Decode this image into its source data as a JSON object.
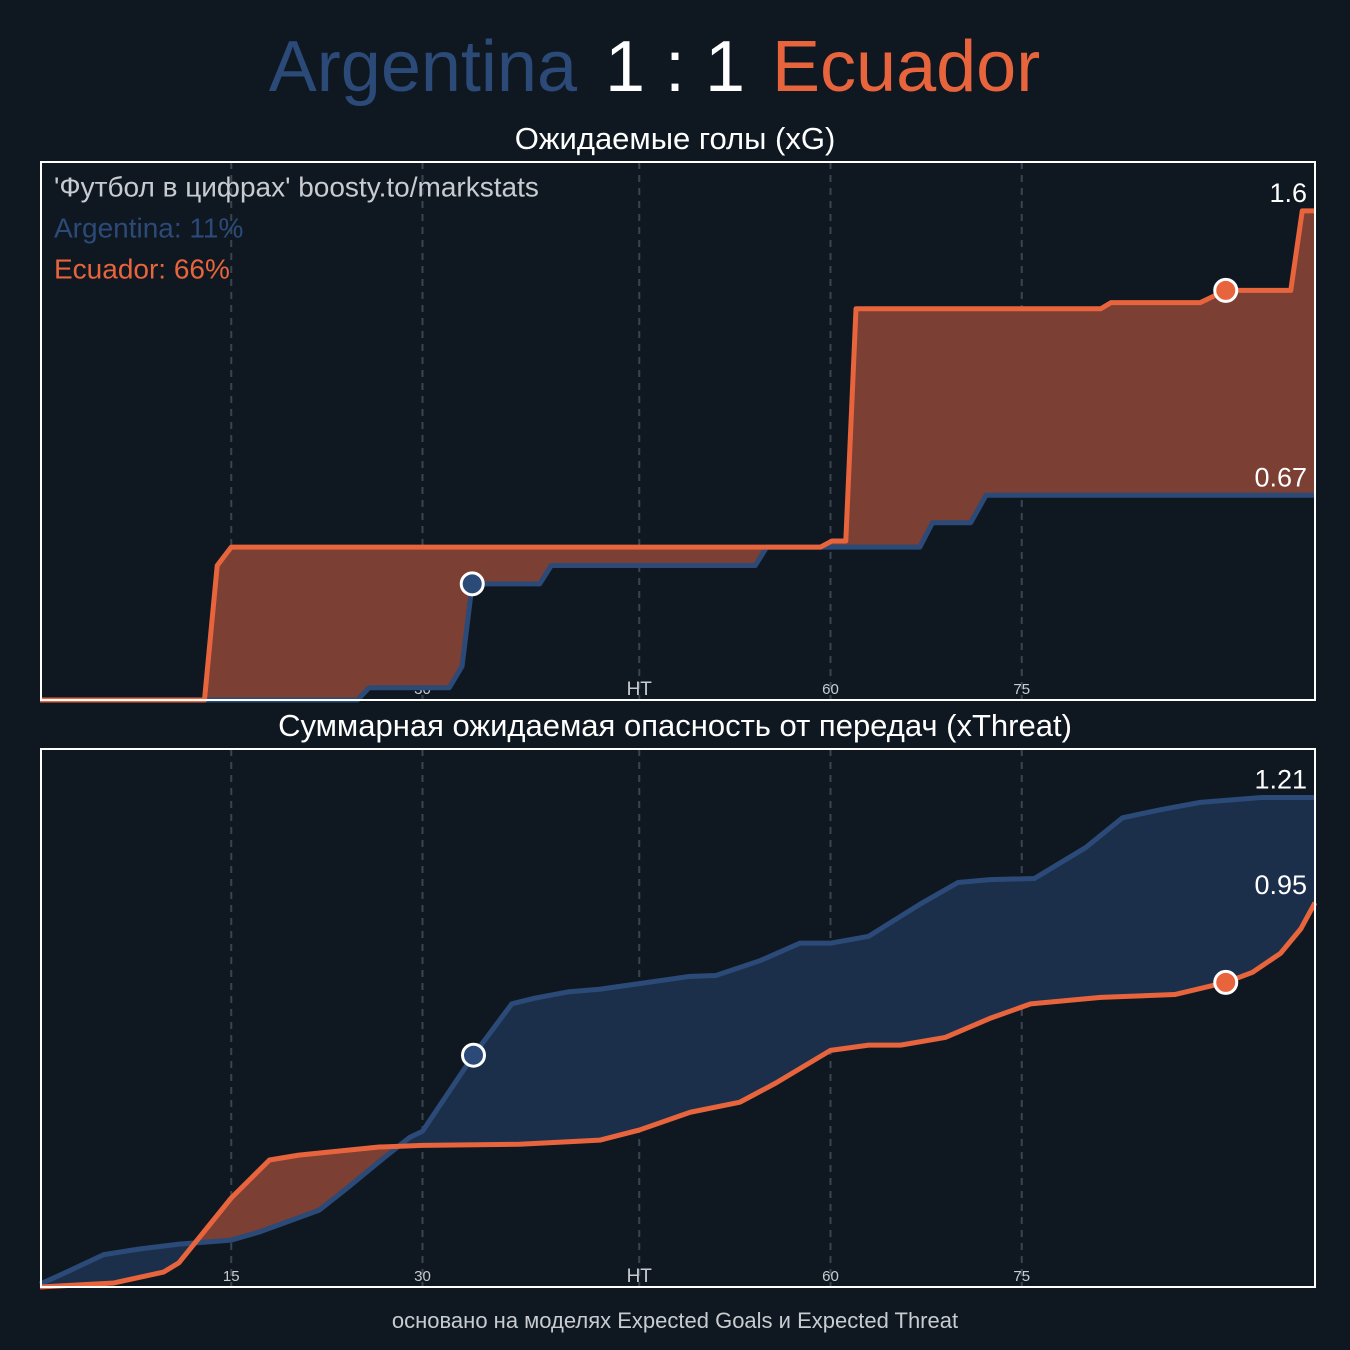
{
  "header": {
    "home": "Argentina",
    "score": "1 : 1",
    "away": "Ecuador",
    "home_color": "#2b4a78",
    "away_color": "#e8643c"
  },
  "footer": "основано на моделях Expected Goals и Expected Threat",
  "chart_data": [
    {
      "type": "line",
      "title": "Ожидаемые голы (xG)",
      "annotations": [
        "'Футбол в цифрах' boosty.to/markstats",
        "Argentina: 11%",
        "Ecuador: 66%"
      ],
      "xlim": [
        0,
        100
      ],
      "xticks": [
        15,
        30,
        {
          "value": 47,
          "label": "HT"
        },
        {
          "value": 62,
          "label": "60"
        },
        {
          "value": 77,
          "label": "75"
        }
      ],
      "ylim": [
        0,
        1.76
      ],
      "grid": true,
      "series": [
        {
          "name": "Argentina",
          "color": "#2b4a78",
          "fill": "#1c2f4a",
          "x": [
            0,
            24.9,
            25.8,
            32.1,
            33.1,
            33.9,
            39.2,
            40.1,
            56.1,
            57,
            69,
            70,
            73,
            74.2,
            100
          ],
          "values": [
            0,
            0,
            0.04,
            0.04,
            0.11,
            0.38,
            0.38,
            0.44,
            0.44,
            0.5,
            0.5,
            0.58,
            0.58,
            0.67,
            0.67
          ],
          "end_label": "0.67",
          "markers": {
            "x": [
              33.9
            ],
            "values": [
              0.38
            ]
          }
        },
        {
          "name": "Ecuador",
          "color": "#e8643c",
          "fill": "#7b3f33",
          "x": [
            0,
            12.9,
            13.9,
            15,
            61.2,
            62.1,
            63.2,
            64,
            83.2,
            84,
            91,
            93,
            98.1,
            99,
            100
          ],
          "values": [
            0,
            0,
            0.44,
            0.5,
            0.5,
            0.52,
            0.52,
            1.28,
            1.28,
            1.3,
            1.3,
            1.34,
            1.34,
            1.6,
            1.6
          ],
          "end_label": "1.6",
          "markers": {
            "x": [
              93
            ],
            "values": [
              1.34
            ]
          }
        }
      ]
    },
    {
      "type": "line",
      "title": "Суммарная ожидаемая опасность от передач (xThreat)",
      "xlim": [
        0,
        100
      ],
      "xticks": [
        15,
        30,
        {
          "value": 47,
          "label": "HT"
        },
        {
          "value": 62,
          "label": "60"
        },
        {
          "value": 77,
          "label": "75"
        }
      ],
      "ylim": [
        0,
        1.33
      ],
      "grid": true,
      "series": [
        {
          "name": "Argentina",
          "color": "#2b4a78",
          "fill": "#1c2f4a",
          "x": [
            0,
            2.3,
            5,
            7.8,
            10.9,
            15,
            17.2,
            21.9,
            24.3,
            27,
            29,
            30,
            34,
            37,
            38.8,
            41.5,
            43.9,
            47,
            51,
            53,
            56.5,
            59.6,
            62,
            65,
            69,
            72,
            74.5,
            78,
            82,
            84.9,
            87.9,
            91,
            95.8,
            100
          ],
          "values": [
            0.007,
            0.04,
            0.08,
            0.094,
            0.106,
            0.116,
            0.136,
            0.19,
            0.25,
            0.32,
            0.37,
            0.385,
            0.573,
            0.7,
            0.714,
            0.73,
            0.736,
            0.75,
            0.768,
            0.77,
            0.807,
            0.85,
            0.85,
            0.867,
            0.946,
            1.0,
            1.007,
            1.01,
            1.086,
            1.16,
            1.18,
            1.198,
            1.21,
            1.21
          ],
          "end_label": "1.21",
          "markers": {
            "x": [
              34
            ],
            "values": [
              0.573
            ]
          }
        },
        {
          "name": "Ecuador",
          "color": "#e8643c",
          "fill": "#7b3f33",
          "x": [
            0,
            5.8,
            9.7,
            10.9,
            15,
            18,
            20.3,
            26.6,
            30,
            37.6,
            43.9,
            47,
            51,
            54.9,
            57.7,
            62,
            65,
            67.5,
            71,
            74.5,
            77.7,
            83.2,
            89,
            93,
            95.1,
            97.3,
            98.9,
            100
          ],
          "values": [
            0,
            0.01,
            0.037,
            0.06,
            0.22,
            0.314,
            0.326,
            0.346,
            0.35,
            0.353,
            0.363,
            0.388,
            0.432,
            0.457,
            0.504,
            0.585,
            0.598,
            0.598,
            0.617,
            0.664,
            0.7,
            0.716,
            0.723,
            0.753,
            0.778,
            0.825,
            0.886,
            0.95
          ],
          "end_label": "0.95",
          "markers": {
            "x": [
              93
            ],
            "values": [
              0.753
            ]
          }
        }
      ]
    }
  ]
}
